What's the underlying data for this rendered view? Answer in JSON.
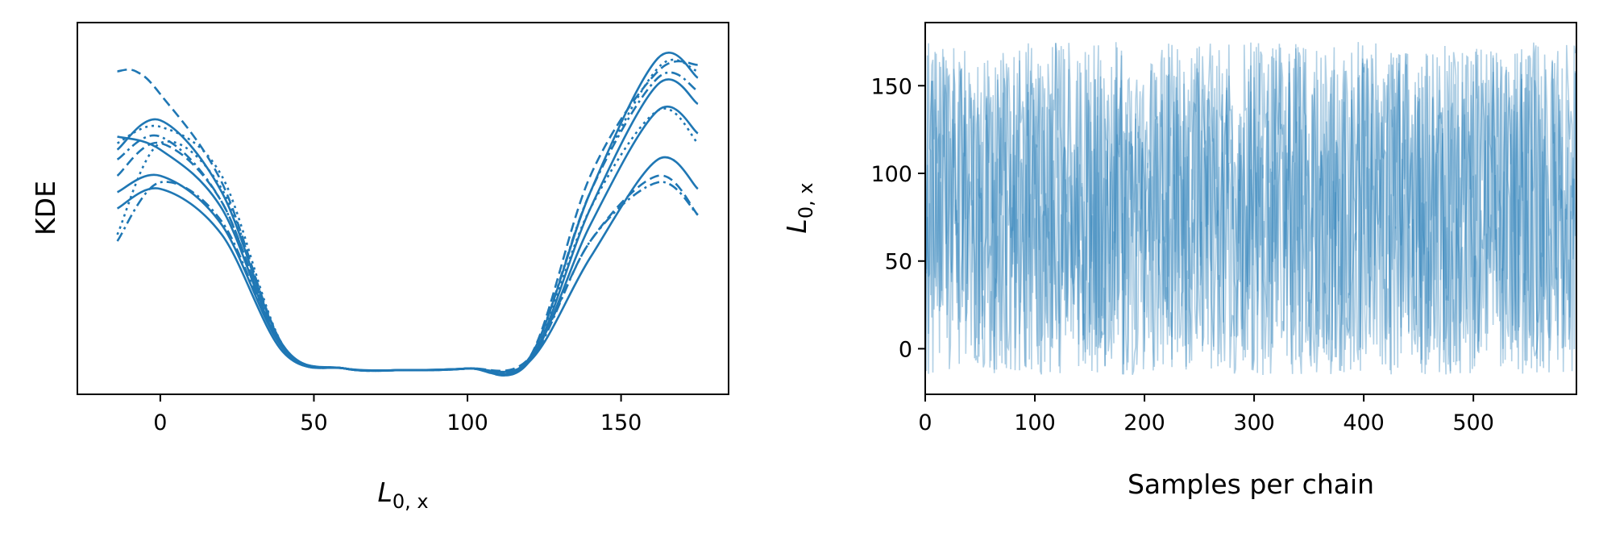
{
  "colors": {
    "series": "#1f77b4",
    "axes": "#000000",
    "background": "#ffffff"
  },
  "chart_data": [
    {
      "type": "line",
      "title": "",
      "xlabel": {
        "main": "L",
        "sub": "0, x"
      },
      "ylabel": "KDE",
      "xlim": [
        -27,
        185
      ],
      "ylim": [
        0,
        1
      ],
      "xticks": [
        0,
        50,
        100,
        150
      ],
      "xtick_labels": [
        "0",
        "50",
        "100",
        "150"
      ],
      "yticks_shown": false,
      "grid": false,
      "legend": "none",
      "line_styles": [
        "solid",
        "dashed",
        "dashdot",
        "dotted"
      ],
      "series": [
        {
          "style": "solid",
          "x": [
            -14,
            0,
            20,
            40,
            60,
            80,
            100,
            120,
            140,
            162,
            175
          ],
          "y": [
            0.68,
            0.77,
            0.55,
            0.08,
            0.01,
            0.005,
            0.01,
            0.04,
            0.55,
            0.96,
            0.9
          ]
        },
        {
          "style": "solid",
          "x": [
            -14,
            0,
            20,
            40,
            60,
            80,
            100,
            120,
            140,
            162,
            175
          ],
          "y": [
            0.55,
            0.6,
            0.45,
            0.07,
            0.01,
            0.005,
            0.01,
            0.03,
            0.35,
            0.65,
            0.56
          ]
        },
        {
          "style": "solid",
          "x": [
            -14,
            0,
            20,
            40,
            60,
            80,
            100,
            120,
            140,
            162,
            175
          ],
          "y": [
            0.72,
            0.68,
            0.5,
            0.07,
            0.01,
            0.005,
            0.01,
            0.03,
            0.45,
            0.8,
            0.73
          ]
        },
        {
          "style": "solid",
          "x": [
            -14,
            0,
            20,
            40,
            60,
            80,
            100,
            120,
            140,
            162,
            175
          ],
          "y": [
            0.5,
            0.56,
            0.42,
            0.06,
            0.01,
            0.005,
            0.01,
            0.03,
            0.5,
            0.88,
            0.82
          ]
        },
        {
          "style": "dashed",
          "x": [
            -14,
            -8,
            0,
            20,
            40,
            60,
            80,
            100,
            120,
            140,
            162,
            175
          ],
          "y": [
            0.92,
            0.92,
            0.85,
            0.58,
            0.08,
            0.01,
            0.005,
            0.01,
            0.04,
            0.4,
            0.6,
            0.48
          ]
        },
        {
          "style": "dashed",
          "x": [
            -14,
            0,
            20,
            40,
            60,
            80,
            100,
            120,
            140,
            162,
            175
          ],
          "y": [
            0.6,
            0.7,
            0.52,
            0.07,
            0.01,
            0.005,
            0.01,
            0.04,
            0.6,
            0.92,
            0.94
          ]
        },
        {
          "style": "dashdot",
          "x": [
            -14,
            0,
            20,
            40,
            60,
            80,
            100,
            120,
            140,
            162,
            175
          ],
          "y": [
            0.4,
            0.58,
            0.46,
            0.07,
            0.01,
            0.005,
            0.01,
            0.03,
            0.4,
            0.58,
            0.48
          ]
        },
        {
          "style": "dashdot",
          "x": [
            -14,
            0,
            20,
            40,
            60,
            80,
            100,
            120,
            140,
            162,
            175
          ],
          "y": [
            0.65,
            0.72,
            0.52,
            0.07,
            0.01,
            0.005,
            0.01,
            0.04,
            0.55,
            0.9,
            0.86
          ]
        },
        {
          "style": "dotted",
          "x": [
            -14,
            0,
            20,
            40,
            60,
            80,
            100,
            120,
            140,
            162,
            175
          ],
          "y": [
            0.42,
            0.7,
            0.56,
            0.08,
            0.01,
            0.005,
            0.01,
            0.04,
            0.55,
            0.93,
            0.92
          ]
        },
        {
          "style": "dotted",
          "x": [
            -14,
            0,
            20,
            40,
            60,
            80,
            100,
            120,
            140,
            162,
            175
          ],
          "y": [
            0.7,
            0.75,
            0.6,
            0.08,
            0.01,
            0.005,
            0.01,
            0.04,
            0.5,
            0.8,
            0.7
          ]
        }
      ]
    },
    {
      "type": "line",
      "title": "",
      "xlabel": "Samples per chain",
      "ylabel": {
        "main": "L",
        "sub": "0, x"
      },
      "xlim": [
        0,
        594
      ],
      "ylim": [
        -26,
        186
      ],
      "xticks": [
        0,
        100,
        200,
        300,
        400,
        500
      ],
      "xtick_labels": [
        "0",
        "100",
        "200",
        "300",
        "400",
        "500"
      ],
      "yticks": [
        0,
        50,
        100,
        150
      ],
      "ytick_labels": [
        "0",
        "50",
        "100",
        "150"
      ],
      "grid": false,
      "legend": "none",
      "samples_per_chain": 594,
      "value_range": [
        -15,
        175
      ],
      "alpha": 0.35
    }
  ]
}
